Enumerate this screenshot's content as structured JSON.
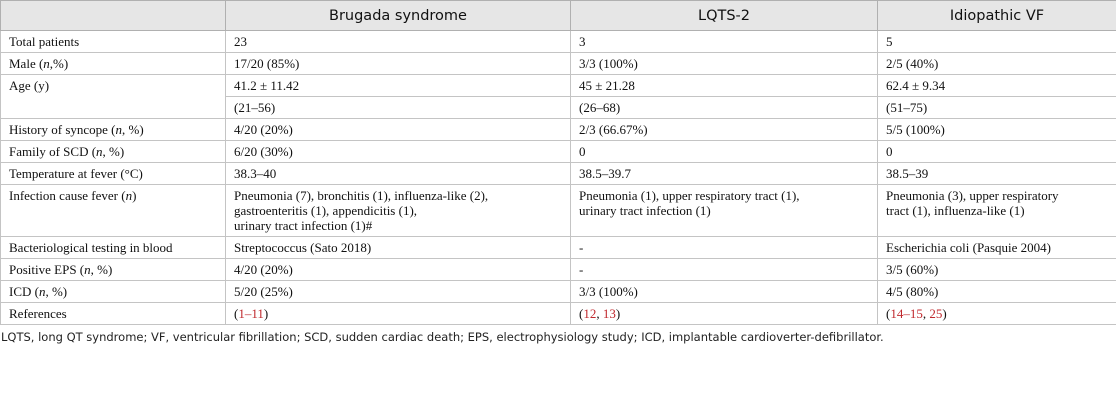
{
  "table": {
    "header": [
      "",
      "Brugada syndrome",
      "LQTS-2",
      "Idiopathic VF"
    ],
    "rows": [
      {
        "label": "Total patients",
        "cells": [
          "23",
          "3",
          "5"
        ]
      },
      {
        "label": {
          "parts": [
            "Male (",
            "n",
            ",%)"
          ]
        },
        "cells": [
          "17/20 (85%)",
          "3/3 (100%)",
          "2/5 (40%)"
        ]
      },
      {
        "label": "Age (y)",
        "cells": [
          "41.2 ± 11.42",
          "45 ± 21.28",
          "62.4 ± 9.34"
        ]
      },
      {
        "cells": [
          "(21–56)",
          "(26–68)",
          "(51–75)"
        ]
      },
      {
        "label": {
          "parts": [
            "History of syncope (",
            "n",
            ", %)"
          ]
        },
        "cells": [
          "4/20 (20%)",
          "2/3 (66.67%)",
          "5/5 (100%)"
        ]
      },
      {
        "label": {
          "parts": [
            "Family of SCD (",
            "n",
            ", %)"
          ]
        },
        "cells": [
          "6/20 (30%)",
          "0",
          "0"
        ]
      },
      {
        "label": "Temperature at fever (°C)",
        "cells": [
          "38.3–40",
          "38.5–39.7",
          "38.5–39"
        ]
      },
      {
        "label": {
          "parts": [
            "Infection cause fever (",
            "n",
            ")"
          ]
        },
        "cells": [
          {
            "lines": [
              "Pneumonia (7), bronchitis (1), influenza-like (2),",
              "gastroenteritis (1), appendicitis (1),",
              "urinary tract infection (1)#"
            ]
          },
          {
            "lines": [
              "Pneumonia (1), upper respiratory tract (1),",
              "urinary tract infection (1)"
            ]
          },
          {
            "lines": [
              "Pneumonia (3), upper respiratory",
              "tract (1), influenza-like (1)"
            ]
          }
        ]
      },
      {
        "label": "Bacteriological testing in blood",
        "cells": [
          "Streptococcus (Sato 2018)",
          "-",
          "Escherichia coli (Pasquie 2004)"
        ]
      },
      {
        "label": {
          "parts": [
            "Positive EPS (",
            "n",
            ", %)"
          ]
        },
        "cells": [
          "4/20 (20%)",
          "-",
          "3/5 (60%)"
        ]
      },
      {
        "label": {
          "parts": [
            "ICD (",
            "n",
            ", %)"
          ]
        },
        "cells": [
          "5/20 (25%)",
          "3/3 (100%)",
          "4/5 (80%)"
        ]
      },
      {
        "label": "References",
        "cells": [
          {
            "parts": [
              "(",
              "1–11",
              ")"
            ]
          },
          {
            "parts": [
              "(",
              "12",
              ", ",
              "13",
              ")"
            ]
          },
          {
            "parts": [
              "(",
              "14–15",
              ", ",
              "25",
              ")"
            ]
          }
        ]
      }
    ],
    "footnote": "LQTS, long QT syndrome; VF, ventricular fibrillation; SCD, sudden cardiac death; EPS, electrophysiology study; ICD, implantable cardioverter-defibrillator."
  }
}
